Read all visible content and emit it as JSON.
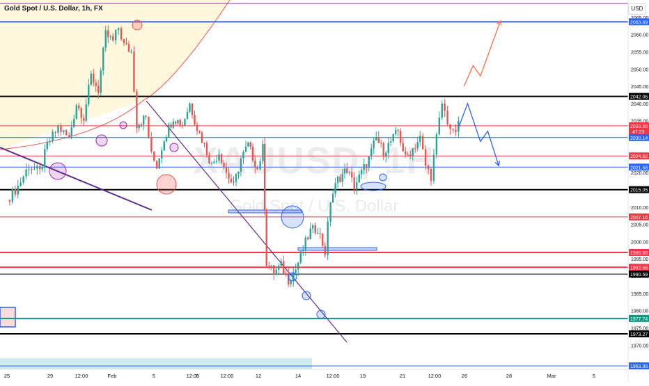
{
  "header": {
    "title": "Gold Spot / U.S. Dollar, 1h, FX",
    "symbol_badge": "USD"
  },
  "watermark": {
    "symbol": "XAUUSD, 1H",
    "name": "Gold Spot / U.S. Dollar"
  },
  "colors": {
    "up": "#26a69a",
    "down": "#ef5350",
    "blue_line": "#2962ff",
    "red_line": "#f23645",
    "black_line": "#000000",
    "trend_line": "#5b2c8c",
    "teal_line": "#089981"
  },
  "chart_data": {
    "type": "candlestick",
    "symbol": "Gold Spot / U.S. Dollar",
    "interval": "1h",
    "ylim": [
      1963,
      2070
    ],
    "y_ticks": [
      1970,
      1975,
      1980,
      1985,
      1990,
      1995,
      2000,
      2005,
      2010,
      2015,
      2020,
      2025,
      2030,
      2035,
      2040,
      2045,
      2050,
      2055,
      2060,
      2065
    ],
    "x_ticks": [
      {
        "label": "25",
        "x": 0
      },
      {
        "label": "29",
        "x": 1
      },
      {
        "label": "12:00",
        "x": 2
      },
      {
        "label": "Feb",
        "x": 3
      },
      {
        "label": "5",
        "x": 4
      },
      {
        "label": "12:00",
        "x": 5
      },
      {
        "label": "7",
        "x": 6
      },
      {
        "label": "12:00",
        "x": 7
      },
      {
        "label": "12",
        "x": 8
      },
      {
        "label": "14",
        "x": 9
      },
      {
        "label": "12:00",
        "x": 10
      },
      {
        "label": "19",
        "x": 11
      },
      {
        "label": "21",
        "x": 12
      },
      {
        "label": "12:00",
        "x": 13
      },
      {
        "label": "26",
        "x": 14
      },
      {
        "label": "28",
        "x": 15
      },
      {
        "label": "Mar",
        "x": 16
      },
      {
        "label": "5",
        "x": 17
      }
    ],
    "levels": [
      {
        "value": 2063.69,
        "label": "2063.69",
        "color": "#2962ff",
        "width": 2
      },
      {
        "value": 2042.06,
        "label": "2042.06",
        "color": "#000000",
        "width": 2
      },
      {
        "value": 2033.55,
        "label": "2033.55",
        "color": "#f23645",
        "width": 1,
        "sub": "47:23"
      },
      {
        "value": 2030.14,
        "label": "2030.14",
        "color": "#2962ff",
        "width": 1
      },
      {
        "value": 2024.82,
        "label": "2024.82",
        "color": "#f23645",
        "width": 1
      },
      {
        "value": 2021.58,
        "label": "2021.58",
        "color": "#2962ff",
        "width": 1
      },
      {
        "value": 2015.05,
        "label": "2015.05",
        "color": "#000000",
        "width": 2
      },
      {
        "value": 2007.16,
        "label": "2007.16",
        "color": "#f23645",
        "width": 1
      },
      {
        "value": 1996.86,
        "label": "1996.86",
        "color": "#f23645",
        "width": 2
      },
      {
        "value": 1992.56,
        "label": "1992.56",
        "color": "#f23645",
        "width": 2
      },
      {
        "value": 1990.59,
        "label": "1990.59",
        "color": "#000000",
        "width": 1
      },
      {
        "value": 1977.74,
        "label": "1977.74",
        "color": "#089981",
        "width": 2
      },
      {
        "value": 1973.27,
        "label": "1973.27",
        "color": "#000000",
        "width": 2
      },
      {
        "value": 1963.99,
        "label": "1963.99",
        "color": "#2962ff",
        "width": 1
      }
    ],
    "price_path": [
      [
        0.0,
        2012
      ],
      [
        0.3,
        2016
      ],
      [
        0.6,
        2022
      ],
      [
        0.9,
        2020
      ],
      [
        1.1,
        2028
      ],
      [
        1.4,
        2033
      ],
      [
        1.7,
        2030
      ],
      [
        1.9,
        2040
      ],
      [
        2.1,
        2036
      ],
      [
        2.3,
        2048
      ],
      [
        2.5,
        2044
      ],
      [
        2.7,
        2060
      ],
      [
        2.9,
        2058
      ],
      [
        3.05,
        2062
      ],
      [
        3.2,
        2057
      ],
      [
        3.4,
        2055
      ],
      [
        3.55,
        2034
      ],
      [
        3.8,
        2036
      ],
      [
        3.95,
        2025
      ],
      [
        4.1,
        2022
      ],
      [
        4.3,
        2030
      ],
      [
        4.55,
        2036
      ],
      [
        4.8,
        2034
      ],
      [
        5.0,
        2040
      ],
      [
        5.2,
        2033
      ],
      [
        5.4,
        2028
      ],
      [
        5.6,
        2022
      ],
      [
        5.8,
        2026
      ],
      [
        6.0,
        2020
      ],
      [
        6.2,
        2016
      ],
      [
        6.4,
        2024
      ],
      [
        6.6,
        2028
      ],
      [
        6.85,
        2021
      ],
      [
        7.0,
        2027
      ],
      [
        7.1,
        1994
      ],
      [
        7.3,
        1991
      ],
      [
        7.5,
        1993
      ],
      [
        7.7,
        1989
      ],
      [
        7.9,
        1992
      ],
      [
        8.1,
        1998
      ],
      [
        8.3,
        2003
      ],
      [
        8.5,
        2004
      ],
      [
        8.7,
        1997
      ],
      [
        8.85,
        2012
      ],
      [
        9.05,
        2018
      ],
      [
        9.3,
        2021
      ],
      [
        9.5,
        2016
      ],
      [
        9.7,
        2020
      ],
      [
        9.9,
        2024
      ],
      [
        10.1,
        2030
      ],
      [
        10.3,
        2026
      ],
      [
        10.5,
        2029
      ],
      [
        10.7,
        2032
      ],
      [
        10.9,
        2024
      ],
      [
        11.1,
        2027
      ],
      [
        11.3,
        2030
      ],
      [
        11.45,
        2022
      ],
      [
        11.6,
        2019
      ],
      [
        11.75,
        2030
      ],
      [
        11.9,
        2040
      ],
      [
        12.05,
        2035
      ],
      [
        12.2,
        2031
      ],
      [
        12.35,
        2033.55
      ]
    ],
    "projections": [
      {
        "color": "#ff7043",
        "points": [
          [
            12.5,
            2045
          ],
          [
            12.75,
            2051
          ],
          [
            12.95,
            2048
          ],
          [
            13.5,
            2064
          ]
        ]
      },
      {
        "color": "#2962ff",
        "points": [
          [
            12.35,
            2033
          ],
          [
            12.6,
            2040
          ],
          [
            12.95,
            2029
          ],
          [
            13.15,
            2032
          ],
          [
            13.45,
            2022
          ]
        ]
      }
    ],
    "pane_header": {
      "left": "Gold Spot / U.S. Dollar",
      "right": "USD"
    }
  }
}
